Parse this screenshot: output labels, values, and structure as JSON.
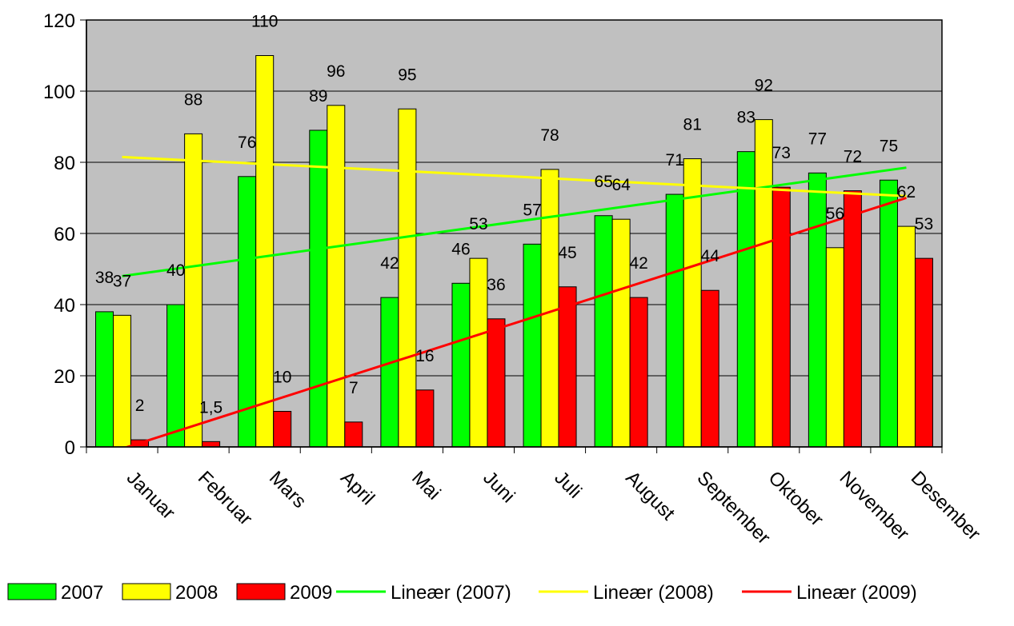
{
  "chart_data": {
    "type": "bar",
    "title": "",
    "xlabel": "",
    "ylabel": "",
    "ylim": [
      0,
      120
    ],
    "yticks": [
      "0",
      "20",
      "40",
      "60",
      "80",
      "100",
      "120"
    ],
    "grid": true,
    "plot_background": "#c0c0c0",
    "legend_position": "bottom",
    "categories": [
      "Januar",
      "Februar",
      "Mars",
      "April",
      "Mai",
      "Juni",
      "Juli",
      "August",
      "September",
      "Oktober",
      "November",
      "Desember"
    ],
    "series": [
      {
        "name": "2007",
        "color": "#00ff00",
        "values": [
          38,
          40,
          76,
          89,
          42,
          46,
          57,
          65,
          71,
          83,
          77,
          75
        ],
        "labels": [
          "38",
          "40",
          "76",
          "89",
          "42",
          "46",
          "57",
          "65",
          "71",
          "83",
          "77",
          "75"
        ]
      },
      {
        "name": "2008",
        "color": "#ffff00",
        "values": [
          37,
          88,
          110,
          96,
          95,
          53,
          78,
          64,
          81,
          92,
          56,
          62
        ],
        "labels": [
          "37",
          "88",
          "110",
          "96",
          "95",
          "53",
          "78",
          "64",
          "81",
          "92",
          "56",
          "62"
        ]
      },
      {
        "name": "2009",
        "color": "#ff0000",
        "values": [
          2,
          1.5,
          10,
          7,
          16,
          36,
          45,
          42,
          44,
          73,
          72,
          53
        ],
        "labels": [
          "2",
          "1,5",
          "10",
          "7",
          "16",
          "36",
          "45",
          "42",
          "44",
          "73",
          "72",
          "53"
        ]
      }
    ],
    "trendlines": [
      {
        "name": "Lineær (2007)",
        "color": "#00ff00",
        "start": 48,
        "end": 78.5
      },
      {
        "name": "Lineær (2008)",
        "color": "#ffff00",
        "start": 81.5,
        "end": 70.5
      },
      {
        "name": "Lineær (2009)",
        "color": "#ff0000",
        "start": -0.5,
        "end": 70
      }
    ]
  }
}
